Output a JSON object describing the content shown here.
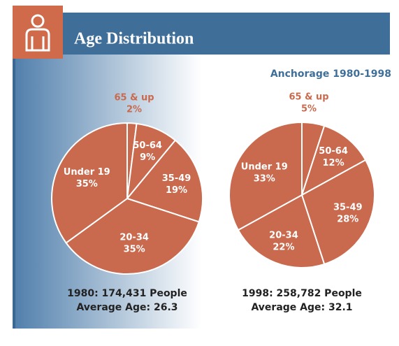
{
  "header": {
    "title": "Age Distribution",
    "subtitle": "Anchorage 1980-1998"
  },
  "chart_data": [
    {
      "type": "pie",
      "categories": [
        "65 & up",
        "50-64",
        "35-49",
        "20-34",
        "Under 19"
      ],
      "values": [
        2,
        9,
        19,
        35,
        35
      ],
      "value_labels": [
        "2%",
        "9%",
        "19%",
        "35%",
        "35%"
      ],
      "color": "#c96a4e",
      "notes": [
        "1980: 174,431 People",
        "Average Age: 26.3"
      ]
    },
    {
      "type": "pie",
      "categories": [
        "65 & up",
        "50-64",
        "35-49",
        "20-34",
        "Under 19"
      ],
      "values": [
        5,
        12,
        28,
        22,
        33
      ],
      "value_labels": [
        "5%",
        "12%",
        "28%",
        "22%",
        "33%"
      ],
      "color": "#c96a4e",
      "notes": [
        "1998: 258,782 People",
        "Average Age: 32.1"
      ]
    }
  ]
}
